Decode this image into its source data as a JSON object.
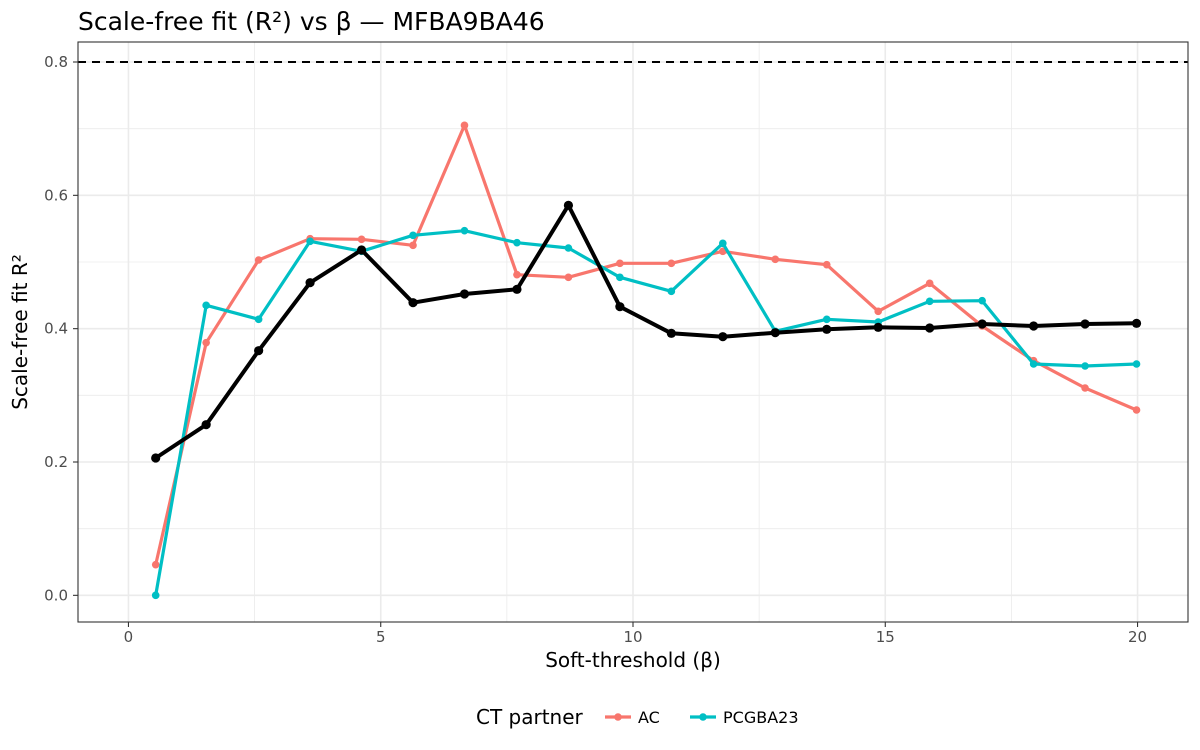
{
  "chart_data": {
    "type": "line",
    "title": "Scale-free fit (R²) vs β — MFBA9BA46",
    "xlabel": "Soft-threshold (β)",
    "ylabel": "Scale-free fit R²",
    "xlim": [
      -1.0,
      21.0
    ],
    "ylim": [
      -0.04,
      0.83
    ],
    "x_ticks": [
      0,
      5,
      10,
      15,
      20
    ],
    "x_tick_labels": [
      "0",
      "5",
      "10",
      "15",
      "20"
    ],
    "y_ticks": [
      0.0,
      0.2,
      0.4,
      0.6,
      0.8
    ],
    "y_tick_labels": [
      "0.0",
      "0.2",
      "0.4",
      "0.6",
      "0.8"
    ],
    "grid": true,
    "reference_line": {
      "y": 0.8,
      "style": "dashed",
      "color": "#000000"
    },
    "legend": {
      "title": "CT partner",
      "position": "bottom",
      "entries": [
        "AC",
        "PCGBA23"
      ]
    },
    "x": [
      0.54,
      1.54,
      2.58,
      3.6,
      4.62,
      5.64,
      6.66,
      7.7,
      8.72,
      9.74,
      10.76,
      11.78,
      12.82,
      13.84,
      14.86,
      15.88,
      16.92,
      17.94,
      18.96,
      19.98
    ],
    "series": [
      {
        "name": "AC",
        "color": "#F8766D",
        "values": [
          0.046,
          0.379,
          0.503,
          0.535,
          0.534,
          0.525,
          0.705,
          0.481,
          0.477,
          0.498,
          0.498,
          0.516,
          0.504,
          0.496,
          0.426,
          0.468,
          0.404,
          0.352,
          0.311,
          0.278
        ]
      },
      {
        "name": "PCGBA23",
        "color": "#00BFC4",
        "values": [
          0.0,
          0.435,
          0.414,
          0.531,
          0.516,
          0.54,
          0.547,
          0.529,
          0.521,
          0.477,
          0.456,
          0.528,
          0.396,
          0.414,
          0.41,
          0.441,
          0.442,
          0.347,
          0.344,
          0.347
        ]
      },
      {
        "color": "#000000",
        "values": [
          0.206,
          0.256,
          0.367,
          0.469,
          0.518,
          0.439,
          0.452,
          0.459,
          0.585,
          0.433,
          0.393,
          0.388,
          0.394,
          0.399,
          0.402,
          0.401,
          0.407,
          0.404,
          0.407,
          0.408
        ]
      }
    ]
  }
}
